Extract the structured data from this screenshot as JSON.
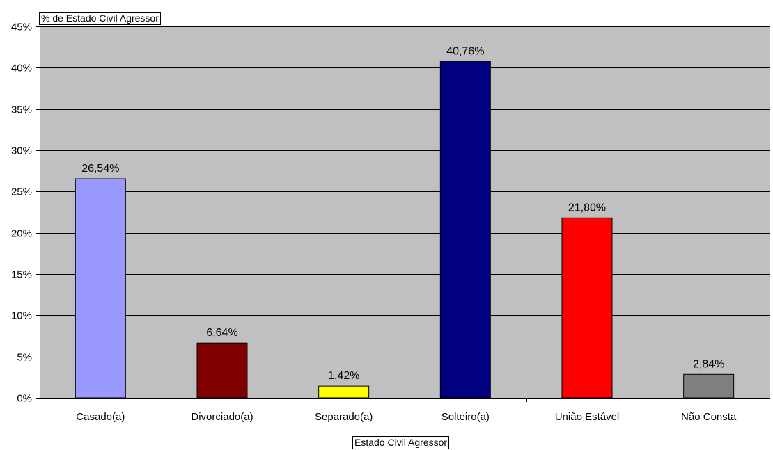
{
  "chart_data": {
    "type": "bar",
    "title": "% de Estado Civil Agressor",
    "xlabel": "Estado Civil Agressor",
    "ylabel": "",
    "categories": [
      "Casado(a)",
      "Divorciado(a)",
      "Separado(a)",
      "Solteiro(a)",
      "União Estável",
      "Não Consta"
    ],
    "values": [
      26.54,
      6.64,
      1.42,
      40.76,
      21.8,
      2.84
    ],
    "data_labels": [
      "26,54%",
      "6,64%",
      "1,42%",
      "40,76%",
      "21,80%",
      "2,84%"
    ],
    "colors": [
      "#9999FF",
      "#800000",
      "#FFFF00",
      "#000080",
      "#FF0000",
      "#808080"
    ],
    "ylim": [
      0,
      45
    ],
    "yticks": [
      0,
      5,
      10,
      15,
      20,
      25,
      30,
      35,
      40,
      45
    ],
    "ytick_labels": [
      "0%",
      "5%",
      "10%",
      "15%",
      "20%",
      "25%",
      "30%",
      "35%",
      "40%",
      "45%"
    ],
    "grid": true,
    "legend": "none",
    "plot_background": "#C0C0C0"
  }
}
